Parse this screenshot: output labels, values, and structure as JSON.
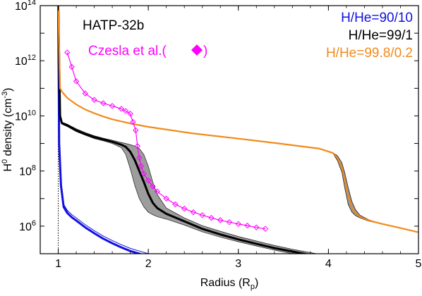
{
  "chart_data": {
    "type": "line",
    "title": "HATP-32b",
    "xlabel": "Radius (R",
    "xlabel_sub": "p",
    "xlabel_close": ")",
    "ylabel": "H",
    "ylabel_sup": "0",
    "ylabel_rest": " density (cm",
    "ylabel_exp": "-3",
    "ylabel_close": ")",
    "xlim": [
      0.8,
      5.0
    ],
    "ylim": [
      100000,
      100000000000000
    ],
    "yscale": "log",
    "grid": false,
    "legend_position": "top-right",
    "vline_x": 1.0,
    "x_ticks": [
      {
        "value": 1,
        "label": "1"
      },
      {
        "value": 2,
        "label": "2"
      },
      {
        "value": 3,
        "label": "3"
      },
      {
        "value": 4,
        "label": "4"
      },
      {
        "value": 5,
        "label": "5"
      }
    ],
    "y_ticks": [
      {
        "value": 1000000,
        "base": "10",
        "exp": "6"
      },
      {
        "value": 100000000,
        "base": "10",
        "exp": "8"
      },
      {
        "value": 10000000000,
        "base": "10",
        "exp": "10"
      },
      {
        "value": 1000000000000,
        "base": "10",
        "exp": "12"
      },
      {
        "value": 100000000000000,
        "base": "10",
        "exp": "14"
      }
    ],
    "series": [
      {
        "name": "H/He=90/10",
        "color": "#1010e0",
        "x": [
          1.0,
          1.01,
          1.03,
          1.06,
          1.1,
          1.15,
          1.2,
          1.3,
          1.4,
          1.5,
          1.6,
          1.7,
          1.8,
          1.9,
          2.0,
          2.05,
          2.1
        ],
        "y": [
          100000000000000.0,
          1000000000.0,
          30000000.0,
          5000000.0,
          3000000.0,
          2100000.0,
          1600000.0,
          900000.0,
          550000.0,
          350000.0,
          240000.0,
          170000.0,
          125000.0,
          100000.0,
          80000.0,
          70000.0,
          60000.0
        ]
      },
      {
        "name": "H/He=99/1",
        "color": "#000000",
        "band_color": "#8c8c8c",
        "x": [
          1.0,
          1.02,
          1.04,
          1.1,
          1.2,
          1.3,
          1.4,
          1.5,
          1.6,
          1.7,
          1.75,
          1.8,
          1.85,
          1.9,
          1.95,
          2.0,
          2.05,
          2.1,
          2.2,
          2.4,
          2.6,
          2.8,
          3.0,
          3.2,
          3.4,
          3.6,
          3.8,
          4.0
        ],
        "y": [
          100000000000000.0,
          10000000000.0,
          5500000000.0,
          4500000000.0,
          3000000000.0,
          2200000000.0,
          1700000000.0,
          1400000000.0,
          1150000000.0,
          900000000.0,
          750000000.0,
          500000000.0,
          250000000.0,
          100000000.0,
          40000000.0,
          15000000.0,
          7000000.0,
          4500000.0,
          2800000.0,
          1500000.0,
          800000.0,
          500000.0,
          330000.0,
          230000.0,
          160000.0,
          120000.0,
          90000.0,
          70000.0
        ],
        "band_upper": [
          100000000000000.0,
          11000000000.0,
          6000000000.0,
          5000000000.0,
          3400000000.0,
          2500000000.0,
          1900000000.0,
          1550000000.0,
          1300000000.0,
          1080000000.0,
          1000000000.0,
          900000000.0,
          800000000.0,
          650000000.0,
          400000000.0,
          150000000.0,
          40000000.0,
          14000000.0,
          4500000.0,
          2000000.0,
          1050000.0,
          650000.0,
          420000.0,
          290000.0,
          200000.0,
          145000.0,
          110000.0,
          85000.0
        ],
        "band_lower": [
          100000000000000.0,
          9000000000.0,
          5000000000.0,
          4100000000.0,
          2700000000.0,
          2000000000.0,
          1500000000.0,
          1250000000.0,
          1000000000.0,
          700000000.0,
          400000000.0,
          120000000.0,
          30000000.0,
          10000000.0,
          5000000.0,
          3200000.0,
          2600000.0,
          2200000.0,
          1800000.0,
          1100000.0,
          620000.0,
          400000.0,
          270000.0,
          190000.0,
          135000.0,
          100000.0,
          75000.0,
          60000.0
        ]
      },
      {
        "name": "H/He=99.8/0.2",
        "color": "#f28a1a",
        "band_color": "#808080",
        "x": [
          1.0,
          1.02,
          1.05,
          1.1,
          1.2,
          1.3,
          1.4,
          1.5,
          1.6,
          1.8,
          2.0,
          2.5,
          3.0,
          3.5,
          3.9,
          4.05,
          4.1,
          4.15,
          4.18,
          4.22,
          4.26,
          4.3,
          4.35,
          4.45,
          4.6,
          4.8,
          5.0
        ],
        "y": [
          100000000000000.0,
          100000000000.0,
          70000000000.0,
          45000000000.0,
          26000000000.0,
          17000000000.0,
          12500000000.0,
          9500000000.0,
          7500000000.0,
          5300000000.0,
          4000000000.0,
          2300000000.0,
          1500000000.0,
          950000000.0,
          650000000.0,
          450000000.0,
          300000000.0,
          140000000.0,
          50000000.0,
          12000000.0,
          5000000.0,
          3000000.0,
          2200000.0,
          1600000.0,
          1200000.0,
          850000.0,
          600000.0
        ],
        "band_upper": [
          100000000000000.0,
          100000000000.0,
          70000000000.0,
          45000000000.0,
          26000000000.0,
          17000000000.0,
          12500000000.0,
          9500000000.0,
          7500000000.0,
          5300000000.0,
          4000000000.0,
          2300000000.0,
          1500000000.0,
          950000000.0,
          650000000.0,
          460000000.0,
          360000000.0,
          200000000.0,
          90000000.0,
          25000000.0,
          8000000.0,
          4000000.0,
          2500000.0,
          1700000.0,
          1200000.0,
          850000.0,
          600000.0
        ],
        "band_lower": [
          100000000000000.0,
          100000000000.0,
          70000000000.0,
          45000000000.0,
          26000000000.0,
          17000000000.0,
          12500000000.0,
          9500000000.0,
          7500000000.0,
          5300000000.0,
          4000000000.0,
          2300000000.0,
          1500000000.0,
          950000000.0,
          650000000.0,
          430000000.0,
          240000000.0,
          90000000.0,
          25000000.0,
          6000000.0,
          3200000.0,
          2400000.0,
          2000000.0,
          1500000.0,
          1200000.0,
          850000.0,
          600000.0
        ]
      },
      {
        "name": "Czesla et al.",
        "color": "#ff00ff",
        "marker": "diamond",
        "x": [
          1.1,
          1.15,
          1.2,
          1.3,
          1.4,
          1.5,
          1.6,
          1.7,
          1.75,
          1.8,
          1.83,
          1.86,
          1.88,
          1.9,
          1.92,
          1.95,
          2.0,
          2.05,
          2.1,
          2.2,
          2.3,
          2.4,
          2.5,
          2.6,
          2.7,
          2.8,
          2.9,
          3.0,
          3.1,
          3.2,
          3.3
        ],
        "y": [
          2000000000000.0,
          600000000000.0,
          180000000000.0,
          65000000000.0,
          38000000000.0,
          29000000000.0,
          23000000000.0,
          18000000000.0,
          15000000000.0,
          12000000000.0,
          6000000000.0,
          3000000000.0,
          800000000.0,
          300000000.0,
          150000000.0,
          80000000.0,
          45000000.0,
          28000000.0,
          18000000.0,
          10000000.0,
          6200000.0,
          4300000.0,
          3200000.0,
          2500000.0,
          2000000.0,
          1650000.0,
          1400000.0,
          1200000.0,
          1050000.0,
          900000.0,
          800000.0
        ]
      }
    ],
    "annotations": {
      "czesla_label": "Czesla et al.(",
      "czesla_close": ")"
    }
  }
}
